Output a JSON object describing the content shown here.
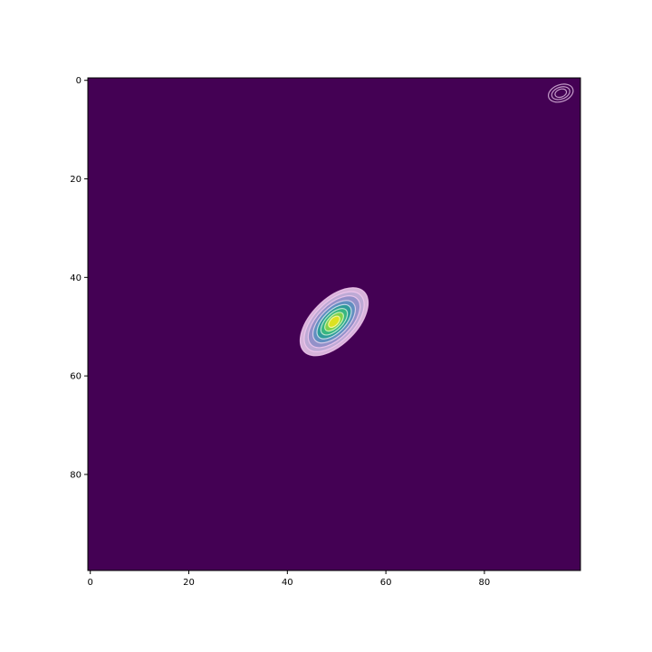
{
  "chart_data": {
    "type": "heatmap",
    "title": "",
    "xlabel": "",
    "ylabel": "",
    "xlim": [
      -0.5,
      99.5
    ],
    "ylim": [
      99.5,
      -0.5
    ],
    "y_axis_inverted": true,
    "colormap": "viridis",
    "x_ticks": [
      0,
      20,
      40,
      60,
      80
    ],
    "y_ticks": [
      0,
      20,
      40,
      60,
      80
    ],
    "x_tick_labels": [
      "0",
      "20",
      "40",
      "60",
      "80"
    ],
    "y_tick_labels": [
      "0",
      "20",
      "40",
      "60",
      "80"
    ],
    "background_value_color": "#440154",
    "contour_color": "#f2c8ee",
    "blobs": [
      {
        "name": "main peak",
        "center": [
          49.5,
          49.0
        ],
        "rotation_deg": -45,
        "contours": [
          {
            "semi_axes": [
              8.6,
              4.6
            ],
            "fill": "#e3c3e6",
            "stroke": "#f2c8ee"
          },
          {
            "semi_axes": [
              7.6,
              4.0
            ],
            "fill": "#bba9d5",
            "stroke": "#f2c8ee"
          },
          {
            "semi_axes": [
              6.6,
              3.4
            ],
            "fill": "#8f8fc8",
            "stroke": "#f2c8ee"
          },
          {
            "semi_axes": [
              5.4,
              2.8
            ],
            "fill": "#5c8fbf",
            "stroke": "#e6d6f0"
          },
          {
            "semi_axes": [
              4.4,
              2.2
            ],
            "fill": "#2a9c96",
            "stroke": "#d7e8f0"
          },
          {
            "semi_axes": [
              3.4,
              1.7
            ],
            "fill": "#3ab97f",
            "stroke": "#ccefd8"
          },
          {
            "semi_axes": [
              2.4,
              1.2
            ],
            "fill": "#86d549",
            "stroke": "#ddf5c0"
          },
          {
            "semi_axes": [
              1.4,
              0.8
            ],
            "fill": "#e5e21d",
            "stroke": "#fff9b0"
          }
        ]
      },
      {
        "name": "corner artifact",
        "center": [
          95.5,
          2.6
        ],
        "rotation_deg": -20,
        "contours": [
          {
            "semi_axes": [
              2.6,
              1.7
            ],
            "fill": "none",
            "stroke": "#d8b6dc"
          },
          {
            "semi_axes": [
              1.9,
              1.2
            ],
            "fill": "none",
            "stroke": "#d8b6dc"
          },
          {
            "semi_axes": [
              1.2,
              0.8
            ],
            "fill": "none",
            "stroke": "#d8b6dc"
          }
        ]
      }
    ]
  }
}
